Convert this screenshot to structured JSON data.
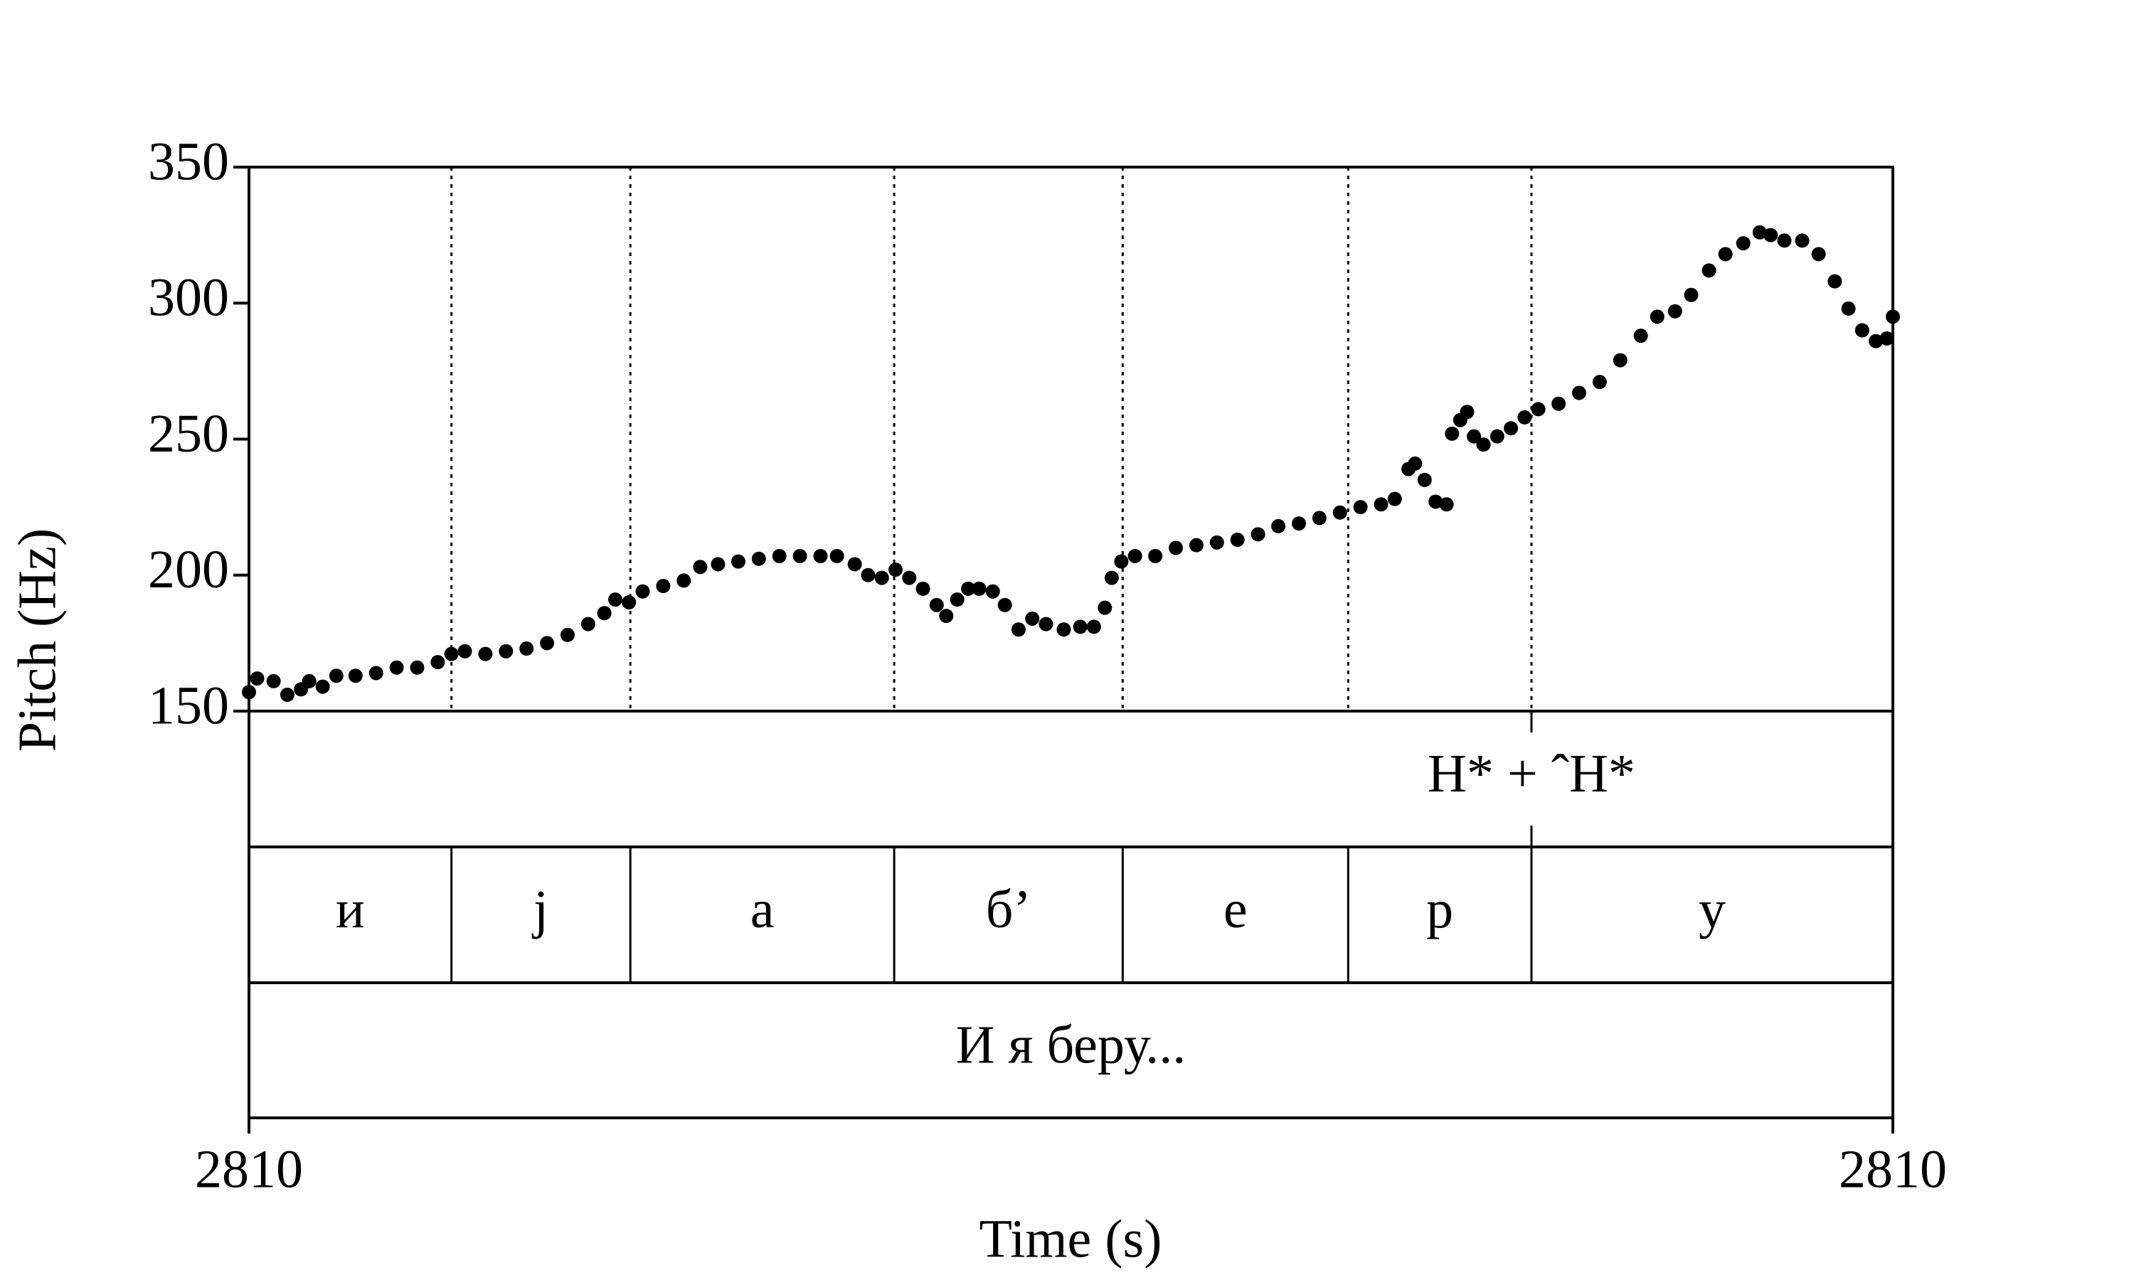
{
  "chart_data": {
    "type": "scatter",
    "y_label": "Pitch (Hz)",
    "x_label": "Time (s)",
    "x": [
      2809.8,
      2809.803,
      2809.809,
      2809.814,
      2809.819,
      2809.822,
      2809.8269,
      2809.8319,
      2809.8389,
      2809.8464,
      2809.8539,
      2809.8614,
      2809.8689,
      2809.8739,
      2809.8788,
      2809.8863,
      2809.8938,
      2809.9013,
      2809.9088,
      2809.9163,
      2809.9238,
      2809.9297,
      2809.9337,
      2809.9387,
      2809.9437,
      2809.9512,
      2809.9587,
      2809.9647,
      2809.9712,
      2809.9786,
      2809.9861,
      2809.9936,
      2810.0011,
      2810.0086,
      2810.0146,
      2810.0211,
      2810.026,
      2810.031,
      2810.036,
      2810.041,
      2810.046,
      2810.051,
      2810.0545,
      2810.0585,
      2810.0625,
      2810.0665,
      2810.0715,
      2810.0759,
      2810.0809,
      2810.0859,
      2810.0909,
      2810.0974,
      2810.1034,
      2810.1084,
      2810.1124,
      2810.1149,
      2810.1184,
      2810.1234,
      2810.1308,
      2810.1383,
      2810.1458,
      2810.1533,
      2810.1608,
      2810.1683,
      2810.1757,
      2810.1832,
      2810.1907,
      2810.1982,
      2810.2057,
      2810.2132,
      2810.2182,
      2810.2232,
      2810.2256,
      2810.2291,
      2810.2331,
      2810.2371,
      2810.2381,
      2810.2391,
      2810.2421,
      2810.2446,
      2810.2471,
      2810.2506,
      2810.2556,
      2810.2606,
      2810.2656,
      2810.2706,
      2810.278,
      2810.2855,
      2810.293,
      2810.3005,
      2810.308,
      2810.314,
      2810.3205,
      2810.3264,
      2810.3329,
      2810.3389,
      2810.3454,
      2810.3514,
      2810.3554,
      2810.3604,
      2810.3669,
      2810.3729,
      2810.3788,
      2810.3838,
      2810.3888,
      2810.3938,
      2810.3978,
      2810.4
    ],
    "values": [
      157,
      162,
      161,
      156,
      158,
      161,
      159,
      163,
      163,
      164,
      166,
      166,
      168,
      171,
      172,
      171,
      172,
      173,
      175,
      178,
      182,
      186,
      191,
      190,
      194,
      196,
      198,
      203,
      204,
      205,
      206,
      207,
      207,
      207,
      207,
      204,
      200,
      199,
      202,
      199,
      195,
      189,
      185,
      191,
      195,
      195,
      194,
      189,
      180,
      184,
      182,
      180,
      181,
      181,
      188,
      199,
      205,
      207,
      207,
      210,
      211,
      212,
      213,
      215,
      218,
      219,
      221,
      223,
      225,
      226,
      228,
      239,
      241,
      235,
      227,
      226,
      null,
      252,
      257,
      260,
      251,
      248,
      251,
      254,
      258,
      261,
      263,
      267,
      271,
      279,
      288,
      295,
      297,
      303,
      312,
      318,
      322,
      326,
      325,
      323,
      323,
      318,
      308,
      298,
      290,
      286,
      287,
      295
    ],
    "color": "#000000",
    "xlim": [
      2809.8,
      2810.4
    ],
    "ylim": [
      150,
      350
    ],
    "xticks": [
      {
        "value": 2809.8,
        "label": "2810"
      },
      {
        "value": 2810.4,
        "label": "2810"
      }
    ],
    "yticks": [
      150,
      200,
      250,
      300,
      350
    ],
    "boundaries": [
      2809.8739,
      2809.9392,
      2810.0355,
      2810.1189,
      2810.2012,
      2810.2681
    ],
    "tones": [
      {
        "time": 2810.2681,
        "label": "H* + ˆH*"
      }
    ],
    "segments": [
      "и",
      "j",
      "а",
      "б’",
      "е",
      "р",
      "у"
    ],
    "utterance": "И я беру..."
  }
}
